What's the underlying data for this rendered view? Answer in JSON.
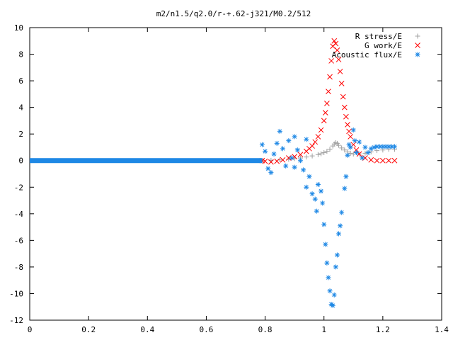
{
  "chart_data": {
    "type": "scatter",
    "title": "m2/n1.5/q2.0/r-+.62-j321/M0.2/512",
    "xlabel": "",
    "ylabel": "",
    "xlim": [
      0,
      1.4
    ],
    "ylim": [
      -12,
      10
    ],
    "x_ticks": [
      "0",
      "0.2",
      "0.4",
      "0.6",
      "0.8",
      "1",
      "1.2",
      "1.4"
    ],
    "y_ticks": [
      "10",
      "8",
      "6",
      "4",
      "2",
      "0",
      "-2",
      "-4",
      "-6",
      "-8",
      "-10",
      "-12"
    ],
    "legend_position": "top-right",
    "grid": false,
    "series": [
      {
        "name": "R stress/E",
        "color": "#a0a0a0",
        "marker": "plus",
        "points": [
          [
            0.79,
            0.0
          ],
          [
            0.82,
            0.02
          ],
          [
            0.85,
            0.05
          ],
          [
            0.88,
            0.1
          ],
          [
            0.9,
            0.15
          ],
          [
            0.92,
            0.2
          ],
          [
            0.94,
            0.27
          ],
          [
            0.96,
            0.35
          ],
          [
            0.98,
            0.45
          ],
          [
            0.99,
            0.52
          ],
          [
            1.0,
            0.6
          ],
          [
            1.01,
            0.7
          ],
          [
            1.02,
            0.85
          ],
          [
            1.03,
            1.1
          ],
          [
            1.035,
            1.25
          ],
          [
            1.04,
            1.35
          ],
          [
            1.045,
            1.3
          ],
          [
            1.05,
            1.15
          ],
          [
            1.06,
            0.95
          ],
          [
            1.07,
            0.8
          ],
          [
            1.08,
            0.65
          ],
          [
            1.09,
            0.55
          ],
          [
            1.1,
            0.5
          ],
          [
            1.12,
            0.5
          ],
          [
            1.14,
            0.55
          ],
          [
            1.16,
            0.65
          ],
          [
            1.18,
            0.75
          ],
          [
            1.2,
            0.8
          ],
          [
            1.22,
            0.85
          ],
          [
            1.24,
            0.85
          ]
        ]
      },
      {
        "name": "G work/E",
        "color": "#ff0000",
        "marker": "cross",
        "points": [
          [
            0.79,
            0.0
          ],
          [
            0.8,
            -0.05
          ],
          [
            0.82,
            -0.1
          ],
          [
            0.84,
            -0.05
          ],
          [
            0.86,
            0.05
          ],
          [
            0.88,
            0.2
          ],
          [
            0.9,
            0.3
          ],
          [
            0.92,
            0.45
          ],
          [
            0.94,
            0.7
          ],
          [
            0.95,
            0.9
          ],
          [
            0.96,
            1.1
          ],
          [
            0.97,
            1.4
          ],
          [
            0.98,
            1.8
          ],
          [
            0.99,
            2.3
          ],
          [
            1.0,
            3.0
          ],
          [
            1.005,
            3.6
          ],
          [
            1.01,
            4.3
          ],
          [
            1.015,
            5.2
          ],
          [
            1.02,
            6.3
          ],
          [
            1.025,
            7.5
          ],
          [
            1.03,
            8.6
          ],
          [
            1.035,
            9.0
          ],
          [
            1.04,
            8.8
          ],
          [
            1.045,
            8.3
          ],
          [
            1.05,
            7.6
          ],
          [
            1.055,
            6.7
          ],
          [
            1.06,
            5.8
          ],
          [
            1.065,
            4.8
          ],
          [
            1.07,
            4.0
          ],
          [
            1.075,
            3.3
          ],
          [
            1.08,
            2.7
          ],
          [
            1.085,
            2.2
          ],
          [
            1.09,
            1.8
          ],
          [
            1.1,
            1.2
          ],
          [
            1.11,
            0.8
          ],
          [
            1.12,
            0.5
          ],
          [
            1.14,
            0.2
          ],
          [
            1.16,
            0.05
          ],
          [
            1.18,
            0.0
          ],
          [
            1.2,
            0.0
          ],
          [
            1.22,
            0.0
          ],
          [
            1.24,
            0.0
          ]
        ]
      },
      {
        "name": "Acoustic flux/E",
        "color": "#1e88e5",
        "marker": "star",
        "points": [
          [
            0.79,
            1.2
          ],
          [
            0.8,
            0.7
          ],
          [
            0.81,
            -0.6
          ],
          [
            0.82,
            -0.9
          ],
          [
            0.83,
            0.5
          ],
          [
            0.84,
            1.3
          ],
          [
            0.85,
            2.2
          ],
          [
            0.86,
            0.9
          ],
          [
            0.87,
            -0.4
          ],
          [
            0.88,
            1.5
          ],
          [
            0.89,
            0.2
          ],
          [
            0.9,
            1.8
          ],
          [
            0.9,
            -0.5
          ],
          [
            0.91,
            0.8
          ],
          [
            0.92,
            0.0
          ],
          [
            0.93,
            -0.7
          ],
          [
            0.94,
            1.6
          ],
          [
            0.94,
            -2.0
          ],
          [
            0.95,
            -1.2
          ],
          [
            0.96,
            -2.5
          ],
          [
            0.97,
            -2.9
          ],
          [
            0.975,
            -3.8
          ],
          [
            0.98,
            -1.8
          ],
          [
            0.99,
            -2.3
          ],
          [
            0.995,
            -3.2
          ],
          [
            1.0,
            -4.8
          ],
          [
            1.005,
            -6.3
          ],
          [
            1.01,
            -7.7
          ],
          [
            1.015,
            -8.8
          ],
          [
            1.02,
            -9.8
          ],
          [
            1.025,
            -10.8
          ],
          [
            1.03,
            -10.9
          ],
          [
            1.035,
            -10.1
          ],
          [
            1.04,
            -8.0
          ],
          [
            1.045,
            -7.1
          ],
          [
            1.05,
            -5.5
          ],
          [
            1.055,
            -4.9
          ],
          [
            1.06,
            -3.9
          ],
          [
            1.07,
            -2.1
          ],
          [
            1.075,
            -1.2
          ],
          [
            1.08,
            0.4
          ],
          [
            1.085,
            1.2
          ],
          [
            1.09,
            1.0
          ],
          [
            1.1,
            2.3
          ],
          [
            1.105,
            1.5
          ],
          [
            1.11,
            0.6
          ],
          [
            1.12,
            1.4
          ],
          [
            1.13,
            0.2
          ],
          [
            1.14,
            1.0
          ],
          [
            1.15,
            0.6
          ],
          [
            1.16,
            0.9
          ],
          [
            1.17,
            1.0
          ],
          [
            1.18,
            1.05
          ],
          [
            1.19,
            1.05
          ],
          [
            1.2,
            1.05
          ],
          [
            1.21,
            1.05
          ],
          [
            1.22,
            1.05
          ],
          [
            1.23,
            1.05
          ],
          [
            1.24,
            1.05
          ]
        ],
        "baseline": {
          "value": 0.0,
          "x_from": 0.0,
          "x_to": 0.79
        }
      }
    ]
  }
}
